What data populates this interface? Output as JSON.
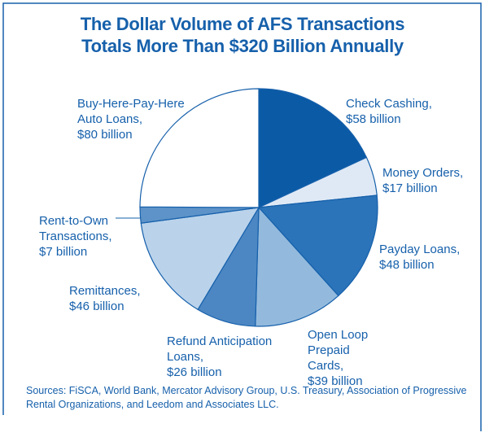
{
  "chart_data": {
    "type": "pie",
    "title": [
      "The Dollar Volume of AFS Transactions",
      "Totals More Than $320 Billion Annually"
    ],
    "categories": [
      "Check Cashing,",
      "Money Orders,",
      "Payday Loans,",
      "Open Loop Prepaid Cards,",
      "Refund Anticipation Loans,",
      "Remittances,",
      "Rent-to-Own Transactions,",
      "Buy-Here-Pay-Here Auto Loans,"
    ],
    "values": [
      58,
      17,
      48,
      39,
      26,
      46,
      7,
      80
    ],
    "value_labels": [
      "$58 billion",
      "$17 billion",
      "$48 billion",
      "$39 billion",
      "$26 billion",
      "$46 billion",
      "$7 billion",
      "$80 billion"
    ],
    "colors": [
      "#0b5aa6",
      "#dfe9f5",
      "#2b74b9",
      "#93badd",
      "#4c87c3",
      "#bad3eb",
      "#5d93c8",
      "#ffffff"
    ],
    "source": "Sources: FiSCA, World Bank, Mercator Advisory Group, U.S. Treasury, Association of Progressive Rental Organizations, and Leedom and Associates LLC."
  }
}
